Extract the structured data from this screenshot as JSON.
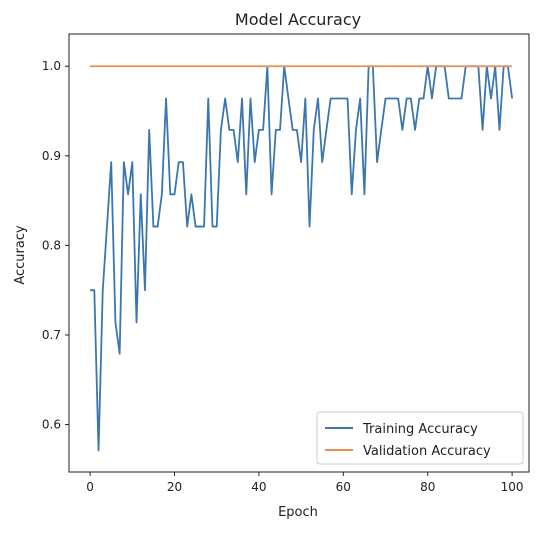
{
  "chart_data": {
    "type": "line",
    "title": "Model Accuracy",
    "xlabel": "Epoch",
    "ylabel": "Accuracy",
    "xlim": [
      -5,
      104
    ],
    "ylim": [
      0.547,
      1.036
    ],
    "xticks": [
      0,
      20,
      40,
      60,
      80,
      100
    ],
    "yticks": [
      0.6,
      0.7,
      0.8,
      0.9,
      1.0
    ],
    "ytick_labels": [
      "0.6",
      "0.7",
      "0.8",
      "0.9",
      "1.0"
    ],
    "grid": false,
    "legend_position": "lower-right",
    "series": [
      {
        "name": "Training Accuracy",
        "color": "#3b77ae",
        "values": [
          0.75,
          0.75,
          0.571,
          0.75,
          0.821,
          0.893,
          0.714,
          0.679,
          0.893,
          0.857,
          0.893,
          0.714,
          0.857,
          0.75,
          0.929,
          0.821,
          0.821,
          0.857,
          0.964,
          0.857,
          0.857,
          0.893,
          0.893,
          0.821,
          0.857,
          0.821,
          0.821,
          0.821,
          0.964,
          0.821,
          0.821,
          0.929,
          0.964,
          0.929,
          0.929,
          0.893,
          0.964,
          0.857,
          0.964,
          0.893,
          0.929,
          0.929,
          1.0,
          0.857,
          0.929,
          0.929,
          1.0,
          0.964,
          0.929,
          0.929,
          0.893,
          0.964,
          0.821,
          0.929,
          0.964,
          0.893,
          0.929,
          0.964,
          0.964,
          0.964,
          0.964,
          0.964,
          0.857,
          0.929,
          0.964,
          0.857,
          1.0,
          1.0,
          0.893,
          0.929,
          0.964,
          0.964,
          0.964,
          0.964,
          0.929,
          0.964,
          0.964,
          0.929,
          0.964,
          0.964,
          1.0,
          0.964,
          1.0,
          1.0,
          1.0,
          0.964,
          0.964,
          0.964,
          0.964,
          1.0,
          1.0,
          1.0,
          1.0,
          0.929,
          1.0,
          0.964,
          1.0,
          0.929,
          1.0,
          1.0,
          0.964
        ]
      },
      {
        "name": "Validation Accuracy",
        "color": "#e8904f",
        "values": [
          1.0,
          1.0,
          1.0,
          1.0,
          1.0,
          1.0,
          1.0,
          1.0,
          1.0,
          1.0,
          1.0,
          1.0,
          1.0,
          1.0,
          1.0,
          1.0,
          1.0,
          1.0,
          1.0,
          1.0,
          1.0,
          1.0,
          1.0,
          1.0,
          1.0,
          1.0,
          1.0,
          1.0,
          1.0,
          1.0,
          1.0,
          1.0,
          1.0,
          1.0,
          1.0,
          1.0,
          1.0,
          1.0,
          1.0,
          1.0,
          1.0,
          1.0,
          1.0,
          1.0,
          1.0,
          1.0,
          1.0,
          1.0,
          1.0,
          1.0,
          1.0,
          1.0,
          1.0,
          1.0,
          1.0,
          1.0,
          1.0,
          1.0,
          1.0,
          1.0,
          1.0,
          1.0,
          1.0,
          1.0,
          1.0,
          1.0,
          1.0,
          1.0,
          1.0,
          1.0,
          1.0,
          1.0,
          1.0,
          1.0,
          1.0,
          1.0,
          1.0,
          1.0,
          1.0,
          1.0,
          1.0,
          1.0,
          1.0,
          1.0,
          1.0,
          1.0,
          1.0,
          1.0,
          1.0,
          1.0,
          1.0,
          1.0,
          1.0,
          1.0,
          1.0,
          1.0,
          1.0,
          1.0,
          1.0,
          1.0,
          1.0
        ]
      }
    ]
  }
}
